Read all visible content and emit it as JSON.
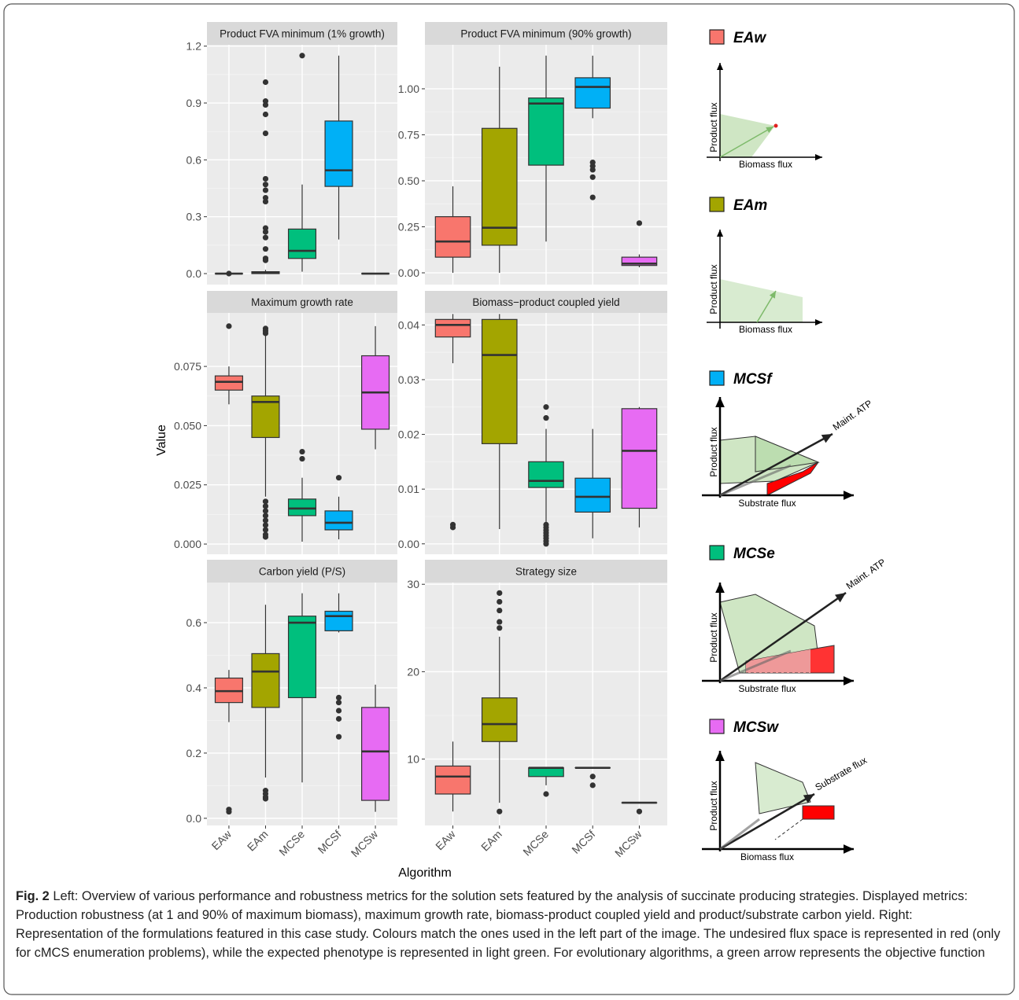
{
  "figure": {
    "y_label": "Value",
    "x_label": "Algorithm"
  },
  "chart_data": [
    {
      "type": "box",
      "title": "Product FVA minimum (1% growth)",
      "categories": [
        "EAw",
        "EAm",
        "MCSe",
        "MCSf",
        "MCSw"
      ],
      "colors": [
        "#F8766D",
        "#A3A500",
        "#00BF7D",
        "#00B0F6",
        "#E76BF3"
      ],
      "ylim": [
        -0.058,
        1.207
      ],
      "yticks": [
        {
          "value": 0,
          "label": "0.0"
        },
        0.3,
        0.6,
        0.9,
        1.2
      ],
      "grid": true,
      "boxes": [
        {
          "min": 0,
          "q1": 0,
          "median": 0,
          "q3": 0,
          "max": 0,
          "outliers": [
            0
          ]
        },
        {
          "min": 0,
          "q1": 0,
          "median": 0.005,
          "q3": 0.01,
          "max": 0.02,
          "outliers": [
            1.01,
            0.91,
            0.89,
            0.84,
            0.74,
            0.5,
            0.47,
            0.44,
            0.4,
            0.38,
            0.24,
            0.22,
            0.19,
            0.13,
            0.08,
            0.07
          ]
        },
        {
          "min": 0.01,
          "q1": 0.08,
          "median": 0.12,
          "q3": 0.235,
          "max": 0.47,
          "outliers": [
            1.15
          ]
        },
        {
          "min": 0.18,
          "q1": 0.46,
          "median": 0.545,
          "q3": 0.805,
          "max": 1.15,
          "outliers": []
        },
        {
          "min": 0,
          "q1": 0,
          "median": 0,
          "q3": 0,
          "max": 0,
          "outliers": []
        }
      ]
    },
    {
      "type": "box",
      "title": "Product FVA minimum (90% growth)",
      "categories": [
        "EAw",
        "EAm",
        "MCSe",
        "MCSf",
        "MCSw"
      ],
      "colors": [
        "#F8766D",
        "#A3A500",
        "#00BF7D",
        "#00B0F6",
        "#E76BF3"
      ],
      "ylim": [
        -0.064,
        1.239
      ],
      "yticks": [
        {
          "value": 0,
          "label": "0.00"
        },
        0.25,
        {
          "value": 0.5,
          "label": "0.50"
        },
        0.75,
        {
          "value": 1,
          "label": "1.00"
        }
      ],
      "grid": true,
      "boxes": [
        {
          "min": 0,
          "q1": 0.085,
          "median": 0.17,
          "q3": 0.305,
          "max": 0.47,
          "outliers": []
        },
        {
          "min": 0,
          "q1": 0.15,
          "median": 0.245,
          "q3": 0.785,
          "max": 1.12,
          "outliers": []
        },
        {
          "min": 0.17,
          "q1": 0.585,
          "median": 0.92,
          "q3": 0.95,
          "max": 1.18,
          "outliers": []
        },
        {
          "min": 0.84,
          "q1": 0.895,
          "median": 1.01,
          "q3": 1.06,
          "max": 1.18,
          "outliers": [
            0.6,
            0.58,
            0.56,
            0.52,
            0.41
          ]
        },
        {
          "min": 0.03,
          "q1": 0.04,
          "median": 0.05,
          "q3": 0.085,
          "max": 0.1,
          "outliers": [
            0.27
          ]
        }
      ]
    },
    {
      "type": "box",
      "title": "Maximum growth rate",
      "categories": [
        "EAw",
        "EAm",
        "MCSe",
        "MCSf",
        "MCSw"
      ],
      "colors": [
        "#F8766D",
        "#A3A500",
        "#00BF7D",
        "#00B0F6",
        "#E76BF3"
      ],
      "ylim": [
        -0.0043,
        0.0976
      ],
      "yticks": [
        {
          "value": 0,
          "label": "0.000"
        },
        0.025,
        {
          "value": 0.05,
          "label": "0.050"
        },
        0.075
      ],
      "grid": true,
      "boxes": [
        {
          "min": 0.059,
          "q1": 0.065,
          "median": 0.0685,
          "q3": 0.071,
          "max": 0.075,
          "outliers": [
            0.092
          ]
        },
        {
          "min": 0.02,
          "q1": 0.045,
          "median": 0.06,
          "q3": 0.0625,
          "max": 0.088,
          "outliers": [
            0.091,
            0.09,
            0.089,
            0.018,
            0.016,
            0.014,
            0.012,
            0.01,
            0.008,
            0.006,
            0.004,
            0.003
          ]
        },
        {
          "min": 0.001,
          "q1": 0.012,
          "median": 0.015,
          "q3": 0.019,
          "max": 0.028,
          "outliers": [
            0.039,
            0.036
          ]
        },
        {
          "min": 0.002,
          "q1": 0.006,
          "median": 0.009,
          "q3": 0.014,
          "max": 0.02,
          "outliers": [
            0.028
          ]
        },
        {
          "min": 0.04,
          "q1": 0.0485,
          "median": 0.064,
          "q3": 0.0795,
          "max": 0.092,
          "outliers": []
        }
      ]
    },
    {
      "type": "box",
      "title": "Biomass−product coupled yield",
      "categories": [
        "EAw",
        "EAm",
        "MCSe",
        "MCSf",
        "MCSw"
      ],
      "colors": [
        "#F8766D",
        "#A3A500",
        "#00BF7D",
        "#00B0F6",
        "#E76BF3"
      ],
      "ylim": [
        -0.0019,
        0.0422
      ],
      "yticks": [
        {
          "value": 0,
          "label": "0.00"
        },
        0.01,
        0.02,
        0.03,
        0.04
      ],
      "grid": true,
      "boxes": [
        {
          "min": 0.033,
          "q1": 0.0378,
          "median": 0.04,
          "q3": 0.041,
          "max": 0.042,
          "outliers": [
            0.0035,
            0.003
          ]
        },
        {
          "min": 0.0027,
          "q1": 0.0183,
          "median": 0.0345,
          "q3": 0.041,
          "max": 0.042,
          "outliers": []
        },
        {
          "min": 0.004,
          "q1": 0.0103,
          "median": 0.0115,
          "q3": 0.015,
          "max": 0.021,
          "outliers": [
            0.025,
            0.023,
            0.0035,
            0.003,
            0.0025,
            0.002,
            0.0015,
            0.001,
            0.0005,
            0
          ]
        },
        {
          "min": 0.001,
          "q1": 0.0058,
          "median": 0.0086,
          "q3": 0.012,
          "max": 0.021,
          "outliers": []
        },
        {
          "min": 0.003,
          "q1": 0.0065,
          "median": 0.017,
          "q3": 0.0247,
          "max": 0.025,
          "outliers": []
        }
      ]
    },
    {
      "type": "box",
      "title": "Carbon yield (P/S)",
      "categories": [
        "EAw",
        "EAm",
        "MCSe",
        "MCSf",
        "MCSw"
      ],
      "colors": [
        "#F8766D",
        "#A3A500",
        "#00BF7D",
        "#00B0F6",
        "#E76BF3"
      ],
      "ylim": [
        -0.022,
        0.723
      ],
      "yticks": [
        {
          "value": 0,
          "label": "0.0"
        },
        0.2,
        0.4,
        0.6
      ],
      "grid": true,
      "boxes": [
        {
          "min": 0.295,
          "q1": 0.355,
          "median": 0.39,
          "q3": 0.43,
          "max": 0.455,
          "outliers": [
            0.027,
            0.02
          ]
        },
        {
          "min": 0.125,
          "q1": 0.34,
          "median": 0.45,
          "q3": 0.505,
          "max": 0.655,
          "outliers": [
            0.085,
            0.075,
            0.065,
            0.06
          ]
        },
        {
          "min": 0.11,
          "q1": 0.37,
          "median": 0.6,
          "q3": 0.62,
          "max": 0.69,
          "outliers": []
        },
        {
          "min": 0.57,
          "q1": 0.575,
          "median": 0.62,
          "q3": 0.635,
          "max": 0.69,
          "outliers": [
            0.37,
            0.355,
            0.33,
            0.305,
            0.25
          ]
        },
        {
          "min": 0.02,
          "q1": 0.055,
          "median": 0.205,
          "q3": 0.34,
          "max": 0.41,
          "outliers": []
        }
      ]
    },
    {
      "type": "box",
      "title": "Strategy size",
      "categories": [
        "EAw",
        "EAm",
        "MCSe",
        "MCSf",
        "MCSw"
      ],
      "colors": [
        "#F8766D",
        "#A3A500",
        "#00BF7D",
        "#00B0F6",
        "#E76BF3"
      ],
      "ylim": [
        2.4,
        30.2
      ],
      "yticks": [
        10,
        20,
        30
      ],
      "grid": true,
      "boxes": [
        {
          "min": 4,
          "q1": 6,
          "median": 8,
          "q3": 9.2,
          "max": 12,
          "outliers": []
        },
        {
          "min": 5,
          "q1": 12,
          "median": 14,
          "q3": 17,
          "max": 24,
          "outliers": [
            29,
            28,
            27,
            25.7,
            25,
            4
          ]
        },
        {
          "min": 7,
          "q1": 8,
          "median": 9,
          "q3": 9,
          "max": 9,
          "outliers": [
            6
          ]
        },
        {
          "min": 9,
          "q1": 9,
          "median": 9,
          "q3": 9,
          "max": 9,
          "outliers": [
            8,
            7
          ]
        },
        {
          "min": 5,
          "q1": 5,
          "median": 5,
          "q3": 5,
          "max": 5,
          "outliers": [
            4
          ]
        }
      ]
    }
  ],
  "schematics": [
    {
      "name": "EAw",
      "color": "#F8766D",
      "y_label": "Product flux",
      "x_label": "Biomass flux"
    },
    {
      "name": "EAm",
      "color": "#A3A500",
      "y_label": "Product flux",
      "x_label": "Biomass flux"
    },
    {
      "name": "MCSf",
      "color": "#00B0F6",
      "y_label": "Product flux",
      "x_label": "Substrate flux",
      "arrow_label": "Maint. ATP"
    },
    {
      "name": "MCSe",
      "color": "#00BF7D",
      "y_label": "Product flux",
      "x_label": "Substrate flux",
      "arrow_label": "Maint. ATP"
    },
    {
      "name": "MCSw",
      "color": "#E76BF3",
      "y_label": "Product flux",
      "x_label": "Biomass flux",
      "arrow_label": "Substrate flux"
    }
  ],
  "caption": {
    "label": "Fig. 2",
    "text": "Left: Overview of various performance and robustness metrics for the solution sets featured by the analysis of succinate producing strategies. Displayed metrics: Production robustness (at 1 and 90% of maximum biomass), maximum growth rate, biomass-product coupled yield and product/substrate carbon yield. Right: Representation of the formulations featured in this case study. Colours match the ones used in the left part of the image. The undesired flux space is represented in red (only for cMCS enumeration problems), while the expected phenotype is represented in light green. For evolutionary algorithms, a green arrow represents the objective function"
  }
}
